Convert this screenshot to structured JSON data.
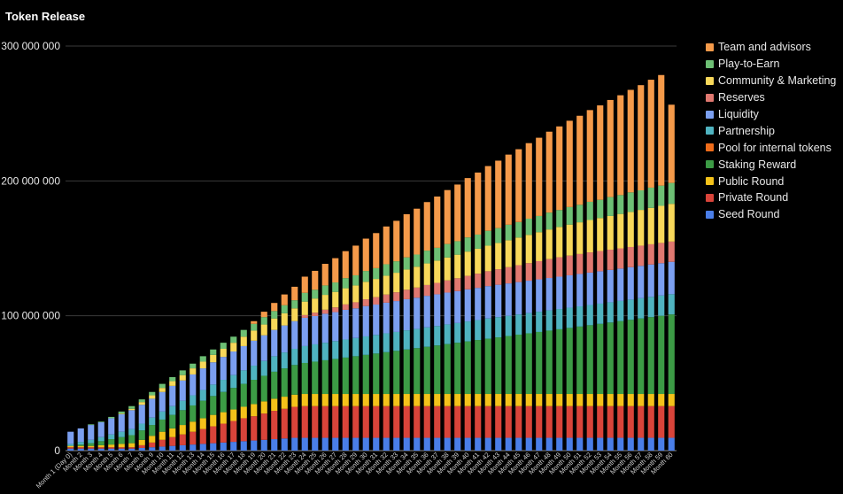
{
  "chart_data": {
    "type": "bar",
    "stacked": true,
    "title": "Token Release",
    "xlabel": "",
    "ylabel": "",
    "ylim": [
      0,
      300000000
    ],
    "yticks": [
      0,
      100000000,
      200000000,
      300000000
    ],
    "ytick_labels": [
      "0",
      "100 000 000",
      "200 000 000",
      "300 000 000"
    ],
    "grid": true,
    "legend_position": "right",
    "categories": [
      "Month 1 (Day 0)",
      "Month 2",
      "Month 3",
      "Month 4",
      "Month 5",
      "Month 6",
      "Month 7",
      "Month 8",
      "Month 9",
      "Month 10",
      "Month 11",
      "Month 12",
      "Month 13",
      "Month 14",
      "Month 15",
      "Month 16",
      "Month 17",
      "Month 18",
      "Month 19",
      "Month 20",
      "Month 21",
      "Month 22",
      "Month 23",
      "Month 24",
      "Month 25",
      "Month 26",
      "Month 27",
      "Month 28",
      "Month 29",
      "Month 30",
      "Month 31",
      "Month 32",
      "Month 33",
      "Month 34",
      "Month 35",
      "Month 36",
      "Month 37",
      "Month 38",
      "Month 39",
      "Month 40",
      "Month 41",
      "Month 42",
      "Month 43",
      "Month 44",
      "Month 45",
      "Month 46",
      "Month 47",
      "Month 48",
      "Month 49",
      "Month 50",
      "Month 51",
      "Month 52",
      "Month 53",
      "Month 54",
      "Month 55",
      "Month 56",
      "Month 57",
      "Month 58",
      "Month 59",
      "Month 60"
    ],
    "series": [
      {
        "name": "Seed Round",
        "color": "#4a7ee8",
        "values": [
          1500000,
          1500000,
          1500000,
          1500000,
          1500000,
          1500000,
          1500000,
          2000000,
          2500000,
          3000000,
          3500000,
          4000000,
          4500000,
          5000000,
          5500000,
          6000000,
          6500000,
          7000000,
          7500000,
          8000000,
          8500000,
          9000000,
          9500000,
          9500000,
          9500000,
          9500000,
          9500000,
          9500000,
          9500000,
          9500000,
          9500000,
          9500000,
          9500000,
          9500000,
          9500000,
          9500000,
          9500000,
          9500000,
          9500000,
          9500000,
          9500000,
          9500000,
          9500000,
          9500000,
          9500000,
          9500000,
          9500000,
          9500000,
          9500000,
          9500000,
          9500000,
          9500000,
          9500000,
          9500000,
          9500000,
          9500000,
          9500000,
          9500000,
          9500000,
          9500000
        ]
      },
      {
        "name": "Private Round",
        "color": "#d9443a",
        "values": [
          1000000,
          1000000,
          1000000,
          1000000,
          1000000,
          1000000,
          1000000,
          2000000,
          3500000,
          5000000,
          6500000,
          8000000,
          9500000,
          11000000,
          12500000,
          14000000,
          15500000,
          17000000,
          18000000,
          19500000,
          21000000,
          22000000,
          23000000,
          23500000,
          23500000,
          23500000,
          23500000,
          23500000,
          23500000,
          23500000,
          23500000,
          23500000,
          23500000,
          23500000,
          23500000,
          23500000,
          23500000,
          23500000,
          23500000,
          23500000,
          23500000,
          23500000,
          23500000,
          23500000,
          23500000,
          23500000,
          23500000,
          23500000,
          23500000,
          23500000,
          23500000,
          23500000,
          23500000,
          23500000,
          23500000,
          23500000,
          23500000,
          23500000,
          23500000,
          23500000
        ]
      },
      {
        "name": "Public Round",
        "color": "#f4c21a",
        "values": [
          1000000,
          1000000,
          1000000,
          1500000,
          2000000,
          2500000,
          3000000,
          4000000,
          5000000,
          6000000,
          6500000,
          7000000,
          7500000,
          8000000,
          8500000,
          8500000,
          8500000,
          8500000,
          9000000,
          9000000,
          9000000,
          9000000,
          9000000,
          9000000,
          9000000,
          9000000,
          9000000,
          9000000,
          9000000,
          9000000,
          9000000,
          9000000,
          9000000,
          9000000,
          9000000,
          9000000,
          9000000,
          9000000,
          9000000,
          9000000,
          9000000,
          9000000,
          9000000,
          9000000,
          9000000,
          9000000,
          9000000,
          9000000,
          9000000,
          9000000,
          9000000,
          9000000,
          9000000,
          9000000,
          9000000,
          9000000,
          9000000,
          9000000,
          9000000,
          9000000
        ]
      },
      {
        "name": "Staking Reward",
        "color": "#3c9b45",
        "values": [
          0,
          1000000,
          2000000,
          3000000,
          4000000,
          5000000,
          6000000,
          7000000,
          8000000,
          9000000,
          10000000,
          11000000,
          12000000,
          13000000,
          14000000,
          15000000,
          16000000,
          17000000,
          18000000,
          19000000,
          20000000,
          21000000,
          22000000,
          23000000,
          24000000,
          25000000,
          26000000,
          27000000,
          28000000,
          29000000,
          30000000,
          31000000,
          32000000,
          33000000,
          34000000,
          35000000,
          36000000,
          37000000,
          38000000,
          39000000,
          40000000,
          41000000,
          42000000,
          43000000,
          44000000,
          45000000,
          46000000,
          47000000,
          48000000,
          49000000,
          50000000,
          51000000,
          52000000,
          53000000,
          54000000,
          55000000,
          56000000,
          57000000,
          58000000,
          59000000
        ]
      },
      {
        "name": "Pool for internal tokens",
        "color": "#ef6c1a",
        "values": [
          0,
          0,
          0,
          0,
          0,
          0,
          0,
          0,
          0,
          0,
          0,
          0,
          0,
          0,
          0,
          0,
          0,
          0,
          0,
          0,
          0,
          0,
          0,
          0,
          0,
          0,
          0,
          0,
          0,
          0,
          0,
          0,
          0,
          0,
          0,
          0,
          0,
          0,
          0,
          0,
          0,
          0,
          0,
          0,
          0,
          0,
          0,
          0,
          0,
          0,
          0,
          0,
          0,
          0,
          0,
          0,
          0,
          0,
          0,
          0
        ]
      },
      {
        "name": "Partnership",
        "color": "#4fb3c0",
        "values": [
          1500000,
          2000000,
          2500000,
          3000000,
          3500000,
          4000000,
          4500000,
          5000000,
          5500000,
          6000000,
          6500000,
          7000000,
          7500000,
          8000000,
          8500000,
          9000000,
          9500000,
          10000000,
          10500000,
          11000000,
          11500000,
          11800000,
          12000000,
          12500000,
          12800000,
          13000000,
          13200000,
          13400000,
          13500000,
          13700000,
          13800000,
          14000000,
          14000000,
          14200000,
          14200000,
          14400000,
          14400000,
          14600000,
          14600000,
          14800000,
          14800000,
          15000000,
          15000000,
          15000000,
          15000000,
          15000000,
          15000000,
          15000000,
          15000000,
          15000000,
          15000000,
          15000000,
          15000000,
          15000000,
          15000000,
          15000000,
          15000000,
          15000000,
          15000000,
          15000000
        ]
      },
      {
        "name": "Liquidity",
        "color": "#7b9ff0",
        "values": [
          9000000,
          10000000,
          11000000,
          11000000,
          12000000,
          13000000,
          14000000,
          14000000,
          14000000,
          14500000,
          15000000,
          15000000,
          15500000,
          16000000,
          16500000,
          17000000,
          17500000,
          18000000,
          18500000,
          19000000,
          19500000,
          20000000,
          20500000,
          21000000,
          21000000,
          21500000,
          21500000,
          22000000,
          22000000,
          22500000,
          22500000,
          22700000,
          22900000,
          23100000,
          23200000,
          23400000,
          23500000,
          23600000,
          23700000,
          23800000,
          23900000,
          24000000,
          24000000,
          24000000,
          24000000,
          24000000,
          24000000,
          24000000,
          24000000,
          24000000,
          24000000,
          24000000,
          24000000,
          24000000,
          24000000,
          24000000,
          24000000,
          24000000,
          24000000,
          24000000
        ]
      },
      {
        "name": "Reserves",
        "color": "#e07870",
        "values": [
          0,
          0,
          0,
          0,
          0,
          0,
          0,
          0,
          0,
          0,
          0,
          0,
          0,
          0,
          0,
          0,
          0,
          0,
          0,
          0,
          0,
          0,
          0,
          2000000,
          2500000,
          3000000,
          3500000,
          4000000,
          4500000,
          5000000,
          5500000,
          6000000,
          6500000,
          7000000,
          7500000,
          8000000,
          8500000,
          9000000,
          9500000,
          10000000,
          10500000,
          11000000,
          11500000,
          12000000,
          12500000,
          13000000,
          13500000,
          14000000,
          14400000,
          14600000,
          14800000,
          15000000,
          15000000,
          15000000,
          15000000,
          15000000,
          15000000,
          15000000,
          15000000,
          15000000
        ]
      },
      {
        "name": "Community & Marketing",
        "color": "#f8d85a",
        "values": [
          0,
          0,
          0,
          0,
          0,
          500000,
          1000000,
          2000000,
          2500000,
          3000000,
          3500000,
          4000000,
          4500000,
          5000000,
          5500000,
          6000000,
          6500000,
          7000000,
          7500000,
          8000000,
          8500000,
          9000000,
          9500000,
          10000000,
          10500000,
          11000000,
          11500000,
          12000000,
          12500000,
          13000000,
          13500000,
          14000000,
          14500000,
          15000000,
          15500000,
          16000000,
          16500000,
          17000000,
          17500000,
          18000000,
          18500000,
          19000000,
          19500000,
          20000000,
          20500000,
          21000000,
          21500000,
          22000000,
          22500000,
          23000000,
          23500000,
          24000000,
          24500000,
          25000000,
          25500000,
          26000000,
          26500000,
          27000000,
          27500000,
          28000000
        ]
      },
      {
        "name": "Play-to-Earn",
        "color": "#6dbf74",
        "values": [
          0,
          0,
          500000,
          500000,
          1000000,
          1500000,
          2000000,
          2000000,
          2500000,
          3000000,
          3000000,
          3500000,
          3500000,
          4000000,
          4000000,
          4500000,
          4500000,
          5000000,
          5000000,
          5500000,
          5500000,
          6000000,
          6000000,
          6500000,
          6500000,
          7000000,
          7000000,
          7500000,
          7500000,
          8000000,
          8000000,
          8500000,
          8500000,
          9000000,
          9000000,
          9500000,
          9500000,
          10000000,
          10000000,
          10500000,
          10500000,
          11000000,
          11000000,
          11500000,
          11500000,
          12000000,
          12000000,
          12500000,
          12500000,
          13000000,
          13000000,
          13500000,
          13500000,
          14000000,
          14000000,
          14500000,
          14500000,
          15000000,
          15000000,
          15500000
        ]
      },
      {
        "name": "Team and advisors",
        "color": "#f59a4a",
        "values": [
          0,
          0,
          0,
          0,
          0,
          0,
          0,
          0,
          0,
          0,
          0,
          0,
          0,
          0,
          0,
          0,
          0,
          0,
          2000000,
          4000000,
          6000000,
          8000000,
          10000000,
          12000000,
          14000000,
          16000000,
          18000000,
          20000000,
          22000000,
          24000000,
          26000000,
          28000000,
          30000000,
          32000000,
          34000000,
          36000000,
          38000000,
          40000000,
          42000000,
          44000000,
          46000000,
          48000000,
          50000000,
          52000000,
          54000000,
          56000000,
          58000000,
          60000000,
          62000000,
          64000000,
          66000000,
          68000000,
          70000000,
          72000000,
          74000000,
          76000000,
          78000000,
          80000000,
          82000000,
          58000000
        ]
      }
    ]
  }
}
